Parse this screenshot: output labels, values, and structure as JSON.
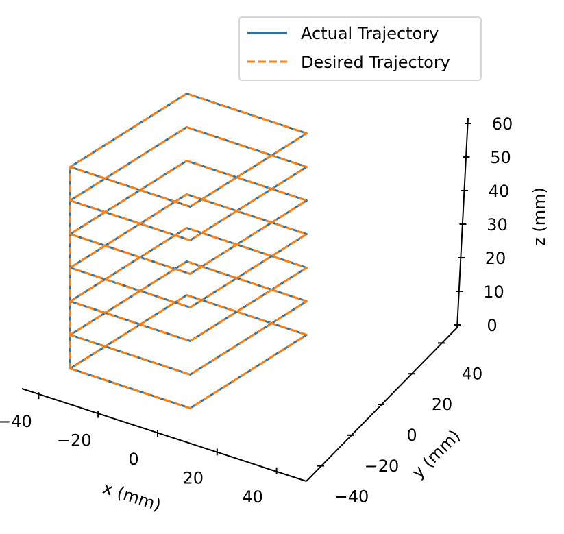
{
  "chart_data": {
    "type": "line",
    "projection": "3d",
    "xlabel": "x (mm)",
    "ylabel": "y (mm)",
    "zlabel": "z (mm)",
    "xlim": [
      -50,
      50
    ],
    "ylim": [
      -50,
      50
    ],
    "zlim": [
      0,
      60
    ],
    "x_ticks": [
      -40,
      -20,
      0,
      20,
      40
    ],
    "x_tick_labels": [
      "−40",
      "−20",
      "0",
      "20",
      "40"
    ],
    "y_ticks": [
      -40,
      -20,
      0,
      20,
      40
    ],
    "y_tick_labels": [
      "−40",
      "−20",
      "0",
      "20",
      "40"
    ],
    "z_ticks": [
      0,
      10,
      20,
      30,
      40,
      50,
      60
    ],
    "z_tick_labels": [
      "0",
      "10",
      "20",
      "30",
      "40",
      "50",
      "60"
    ],
    "grid": false,
    "legend_position": "top-right",
    "series": [
      {
        "name": "Actual Trajectory",
        "color": "#1f77b4",
        "style": "solid",
        "points": [
          [
            -50,
            -50,
            0
          ],
          [
            50,
            -50,
            0
          ],
          [
            50,
            50,
            0
          ],
          [
            -50,
            50,
            0
          ],
          [
            -50,
            -50,
            0
          ],
          [
            -50,
            -50,
            10
          ],
          [
            50,
            -50,
            10
          ],
          [
            50,
            50,
            10
          ],
          [
            -50,
            50,
            10
          ],
          [
            -50,
            -50,
            10
          ],
          [
            -50,
            -50,
            20
          ],
          [
            50,
            -50,
            20
          ],
          [
            50,
            50,
            20
          ],
          [
            -50,
            50,
            20
          ],
          [
            -50,
            -50,
            20
          ],
          [
            -50,
            -50,
            30
          ],
          [
            50,
            -50,
            30
          ],
          [
            50,
            50,
            30
          ],
          [
            -50,
            50,
            30
          ],
          [
            -50,
            -50,
            30
          ],
          [
            -50,
            -50,
            40
          ],
          [
            50,
            -50,
            40
          ],
          [
            50,
            50,
            40
          ],
          [
            -50,
            50,
            40
          ],
          [
            -50,
            -50,
            40
          ],
          [
            -50,
            -50,
            50
          ],
          [
            50,
            -50,
            50
          ],
          [
            50,
            50,
            50
          ],
          [
            -50,
            50,
            50
          ],
          [
            -50,
            -50,
            50
          ],
          [
            -50,
            -50,
            60
          ],
          [
            50,
            -50,
            60
          ],
          [
            50,
            50,
            60
          ],
          [
            -50,
            50,
            60
          ],
          [
            -50,
            -50,
            60
          ]
        ]
      },
      {
        "name": "Desired Trajectory",
        "color": "#ff7f0e",
        "style": "dashed",
        "points": [
          [
            -50,
            -50,
            0
          ],
          [
            50,
            -50,
            0
          ],
          [
            50,
            50,
            0
          ],
          [
            -50,
            50,
            0
          ],
          [
            -50,
            -50,
            0
          ],
          [
            -50,
            -50,
            10
          ],
          [
            50,
            -50,
            10
          ],
          [
            50,
            50,
            10
          ],
          [
            -50,
            50,
            10
          ],
          [
            -50,
            -50,
            10
          ],
          [
            -50,
            -50,
            20
          ],
          [
            50,
            -50,
            20
          ],
          [
            50,
            50,
            20
          ],
          [
            -50,
            50,
            20
          ],
          [
            -50,
            -50,
            20
          ],
          [
            -50,
            -50,
            30
          ],
          [
            50,
            -50,
            30
          ],
          [
            50,
            50,
            30
          ],
          [
            -50,
            50,
            30
          ],
          [
            -50,
            -50,
            30
          ],
          [
            -50,
            -50,
            40
          ],
          [
            50,
            -50,
            40
          ],
          [
            50,
            50,
            40
          ],
          [
            -50,
            50,
            40
          ],
          [
            -50,
            -50,
            40
          ],
          [
            -50,
            -50,
            50
          ],
          [
            50,
            -50,
            50
          ],
          [
            50,
            50,
            50
          ],
          [
            -50,
            50,
            50
          ],
          [
            -50,
            -50,
            50
          ],
          [
            -50,
            -50,
            60
          ],
          [
            50,
            -50,
            60
          ],
          [
            50,
            50,
            60
          ],
          [
            -50,
            50,
            60
          ],
          [
            -50,
            -50,
            60
          ]
        ]
      }
    ]
  }
}
